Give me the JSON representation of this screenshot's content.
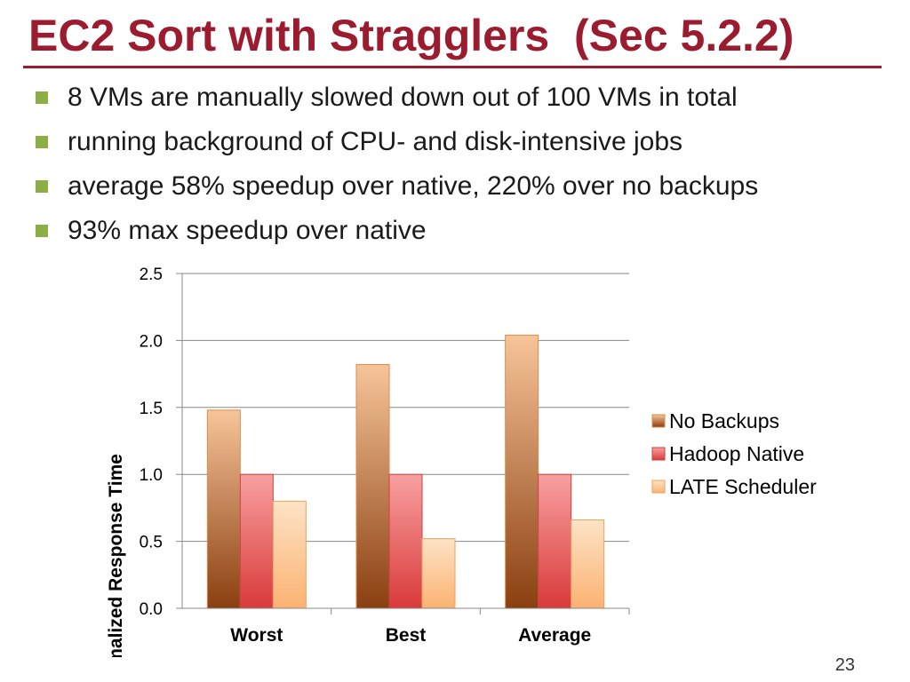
{
  "slide": {
    "title": "EC2 Sort with Stragglers  (Sec 5.2.2)",
    "bullets": [
      "8 VMs are manually slowed down out of 100 VMs in total",
      "running background of CPU- and disk-intensive jobs",
      "average 58% speedup over native, 220% over no backups",
      "93% max speedup over native"
    ],
    "page_number": "23"
  },
  "chart_data": {
    "type": "bar",
    "categories": [
      "Worst",
      "Best",
      "Average"
    ],
    "series": [
      {
        "name": "No Backups",
        "values": [
          1.48,
          1.82,
          2.04
        ],
        "color_top": "#f7c49a",
        "color_bottom": "#8a3f10",
        "stroke": "#d98c4a"
      },
      {
        "name": "Hadoop Native",
        "values": [
          1.0,
          1.0,
          1.0
        ],
        "color_top": "#f8a0a0",
        "color_bottom": "#d93a3a",
        "stroke": "#cc4040"
      },
      {
        "name": "LATE Scheduler",
        "values": [
          0.8,
          0.52,
          0.66
        ],
        "color_top": "#fde3c6",
        "color_bottom": "#fbb272",
        "stroke": "#f0a060"
      }
    ],
    "ylabel": "Normalized Response Time",
    "xlabel": "",
    "ylim": [
      0,
      2.5
    ],
    "yticks": [
      "0.0",
      "0.5",
      "1.0",
      "1.5",
      "2.0",
      "2.5"
    ],
    "grid": true,
    "legend_position": "right"
  }
}
